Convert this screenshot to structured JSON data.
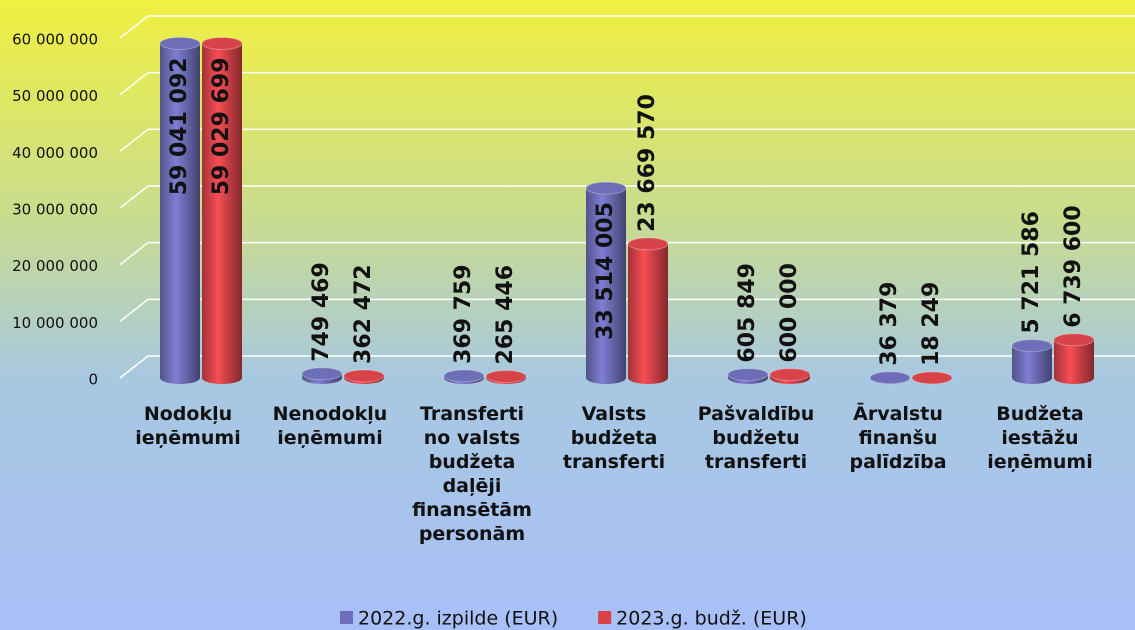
{
  "chart_data": {
    "type": "bar",
    "categories": [
      "Nodokļu ieņēmumi",
      "Nenodokļu ieņēmumi",
      "Transferti no valsts budžeta daļēji finansētām personām",
      "Valsts budžeta transferti",
      "Pašvaldību budžetu transferti",
      "Ārvalstu finanšu palīdzība",
      "Budžeta iestāžu ieņēmumi"
    ],
    "series": [
      {
        "name": "2022.g. izpilde (EUR)",
        "color": "#6e6eb8",
        "values": [
          59041092,
          749469,
          369759,
          33514005,
          605849,
          36379,
          5721586
        ],
        "value_labels": [
          "59 041 092",
          "749 469",
          "369 759",
          "33 514 005",
          "605 849",
          "36 379",
          "5 721 586"
        ]
      },
      {
        "name": "2023.g. budž. (EUR)",
        "color": "#d8434a",
        "values": [
          59029699,
          362472,
          265446,
          23669570,
          600000,
          18249,
          6739600
        ],
        "value_labels": [
          "59 029 699",
          "362 472",
          "265 446",
          "23 669 570",
          "600 000",
          "18 249",
          "6 739 600"
        ]
      }
    ],
    "ylim": [
      0,
      60000000
    ],
    "yticks": [
      {
        "value": 0,
        "label": "0"
      },
      {
        "value": 10000000,
        "label": "10 000 000"
      },
      {
        "value": 20000000,
        "label": "20 000 000"
      },
      {
        "value": 30000000,
        "label": "30 000 000"
      },
      {
        "value": 40000000,
        "label": "40 000 000"
      },
      {
        "value": 50000000,
        "label": "50 000 000"
      },
      {
        "value": 60000000,
        "label": "60 000 000"
      }
    ],
    "grid": true,
    "legend": "bottom"
  }
}
